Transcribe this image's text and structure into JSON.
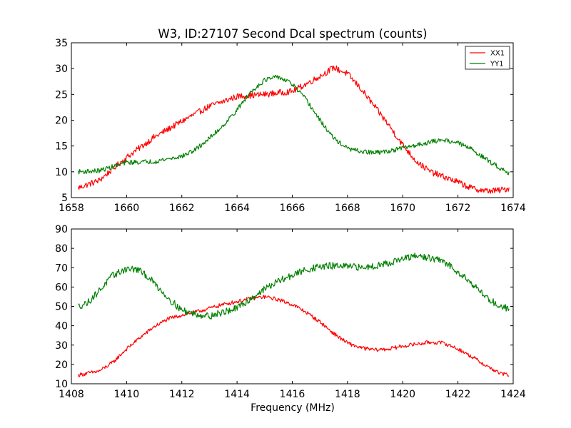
{
  "chart_data": [
    {
      "type": "line",
      "title": "W3, ID:27107 Second Dcal spectrum (counts)",
      "xlabel": "",
      "ylabel": "",
      "xlim": [
        1658,
        1674
      ],
      "ylim": [
        5,
        35
      ],
      "xticks": [
        1658,
        1660,
        1662,
        1664,
        1666,
        1668,
        1670,
        1672,
        1674
      ],
      "yticks": [
        5,
        10,
        15,
        20,
        25,
        30,
        35
      ],
      "x_range": [
        1658.25,
        1673.85
      ],
      "n_points": 600,
      "legend": {
        "placement": "top-right",
        "entries": [
          "XX1",
          "YY1"
        ]
      },
      "series": [
        {
          "name": "XX1",
          "color": "#ff0000",
          "noise": 0.6,
          "points": [
            [
              1658.25,
              6.9
            ],
            [
              1659,
              8.3
            ],
            [
              1660,
              12.8
            ],
            [
              1661,
              16.7
            ],
            [
              1662,
              19.8
            ],
            [
              1663,
              22.7
            ],
            [
              1664,
              24.6
            ],
            [
              1665,
              25.0
            ],
            [
              1666,
              25.6
            ],
            [
              1666.5,
              27.0
            ],
            [
              1667,
              28.5
            ],
            [
              1667.5,
              30.2
            ],
            [
              1668,
              29.0
            ],
            [
              1668.5,
              26.0
            ],
            [
              1669,
              22.5
            ],
            [
              1669.5,
              19.0
            ],
            [
              1670,
              15.2
            ],
            [
              1670.5,
              12.0
            ],
            [
              1671,
              10.0
            ],
            [
              1671.5,
              9.0
            ],
            [
              1672,
              8.0
            ],
            [
              1672.5,
              6.8
            ],
            [
              1673,
              6.3
            ],
            [
              1673.5,
              6.4
            ],
            [
              1673.85,
              6.8
            ]
          ]
        },
        {
          "name": "YY1",
          "color": "#008000",
          "noise": 0.45,
          "points": [
            [
              1658.25,
              10.0
            ],
            [
              1659,
              10.2
            ],
            [
              1660,
              11.8
            ],
            [
              1661,
              12.0
            ],
            [
              1662,
              13.0
            ],
            [
              1662.5,
              14.3
            ],
            [
              1663,
              16.5
            ],
            [
              1663.5,
              19.0
            ],
            [
              1664,
              22.0
            ],
            [
              1664.5,
              25.5
            ],
            [
              1665,
              27.8
            ],
            [
              1665.5,
              28.4
            ],
            [
              1666,
              27.0
            ],
            [
              1666.5,
              24.0
            ],
            [
              1667,
              20.0
            ],
            [
              1667.5,
              16.5
            ],
            [
              1668,
              14.5
            ],
            [
              1668.5,
              13.9
            ],
            [
              1669,
              13.7
            ],
            [
              1669.5,
              14.0
            ],
            [
              1670,
              14.6
            ],
            [
              1670.5,
              15.2
            ],
            [
              1671,
              15.8
            ],
            [
              1671.5,
              16.2
            ],
            [
              1672,
              15.6
            ],
            [
              1672.5,
              14.4
            ],
            [
              1673,
              12.5
            ],
            [
              1673.5,
              10.8
            ],
            [
              1673.85,
              9.8
            ]
          ]
        }
      ]
    },
    {
      "type": "line",
      "title": "",
      "xlabel": "Frequency (MHz)",
      "ylabel": "",
      "xlim": [
        1408,
        1424
      ],
      "ylim": [
        10,
        90
      ],
      "xticks": [
        1408,
        1410,
        1412,
        1414,
        1416,
        1418,
        1420,
        1422,
        1424
      ],
      "yticks": [
        10,
        20,
        30,
        40,
        50,
        60,
        70,
        80,
        90
      ],
      "x_range": [
        1408.25,
        1423.85
      ],
      "n_points": 600,
      "series": [
        {
          "name": "XX1",
          "color": "#ff0000",
          "noise": 1.0,
          "points": [
            [
              1408.25,
              14.5
            ],
            [
              1409,
              16.5
            ],
            [
              1409.5,
              21.0
            ],
            [
              1410,
              28.0
            ],
            [
              1410.5,
              34.0
            ],
            [
              1411,
              39.5
            ],
            [
              1411.5,
              43.5
            ],
            [
              1412,
              45.5
            ],
            [
              1412.5,
              47.0
            ],
            [
              1413,
              49.0
            ],
            [
              1413.5,
              51.0
            ],
            [
              1414,
              52.5
            ],
            [
              1414.5,
              54.0
            ],
            [
              1415,
              55.0
            ],
            [
              1415.5,
              53.5
            ],
            [
              1416,
              51.0
            ],
            [
              1416.5,
              47.0
            ],
            [
              1417,
              42.0
            ],
            [
              1417.5,
              36.0
            ],
            [
              1418,
              31.0
            ],
            [
              1418.5,
              28.5
            ],
            [
              1419,
              27.5
            ],
            [
              1419.5,
              28.0
            ],
            [
              1420,
              29.5
            ],
            [
              1420.5,
              30.5
            ],
            [
              1421,
              31.5
            ],
            [
              1421.5,
              31.0
            ],
            [
              1422,
              28.0
            ],
            [
              1422.5,
              24.0
            ],
            [
              1423,
              19.5
            ],
            [
              1423.5,
              15.5
            ],
            [
              1423.85,
              14.5
            ]
          ]
        },
        {
          "name": "YY1",
          "color": "#008000",
          "noise": 1.8,
          "points": [
            [
              1408.25,
              50.0
            ],
            [
              1408.6,
              52.0
            ],
            [
              1409,
              58.0
            ],
            [
              1409.5,
              66.0
            ],
            [
              1410,
              69.5
            ],
            [
              1410.4,
              69.0
            ],
            [
              1410.8,
              65.0
            ],
            [
              1411.2,
              59.0
            ],
            [
              1411.6,
              53.0
            ],
            [
              1412,
              48.0
            ],
            [
              1412.5,
              46.0
            ],
            [
              1413,
              45.0
            ],
            [
              1413.5,
              47.0
            ],
            [
              1414,
              49.0
            ],
            [
              1414.5,
              54.0
            ],
            [
              1415,
              59.0
            ],
            [
              1415.5,
              63.0
            ],
            [
              1416,
              66.0
            ],
            [
              1416.5,
              69.0
            ],
            [
              1417,
              70.5
            ],
            [
              1417.5,
              71.0
            ],
            [
              1418,
              70.5
            ],
            [
              1418.5,
              70.0
            ],
            [
              1419,
              71.0
            ],
            [
              1419.5,
              72.5
            ],
            [
              1420,
              74.5
            ],
            [
              1420.5,
              76.0
            ],
            [
              1421,
              75.0
            ],
            [
              1421.5,
              73.0
            ],
            [
              1422,
              68.0
            ],
            [
              1422.5,
              62.0
            ],
            [
              1423,
              55.0
            ],
            [
              1423.5,
              50.0
            ],
            [
              1423.85,
              49.0
            ]
          ]
        }
      ]
    }
  ]
}
